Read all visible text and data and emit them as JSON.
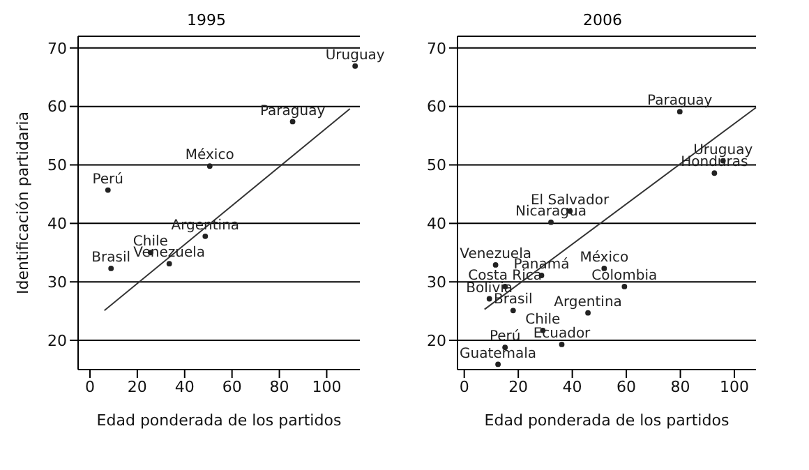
{
  "chart_data": [
    {
      "type": "scatter",
      "title": "1995",
      "xlabel": "Edad ponderada de los partidos",
      "ylabel": "Identificación partidaria",
      "xlim": [
        -5,
        114
      ],
      "ylim": [
        15,
        72
      ],
      "xticks": [
        0,
        20,
        40,
        60,
        80,
        100
      ],
      "yticks": [
        20,
        30,
        40,
        50,
        60,
        70
      ],
      "grid": "y",
      "marker": "circle",
      "series": [
        {
          "color": "#222222",
          "x": [
            112,
            85.6,
            50.6,
            7.6,
            48.7,
            25.6,
            33.5,
            8.9
          ],
          "values": [
            66.9,
            57.4,
            49.8,
            45.7,
            37.8,
            35.0,
            33.1,
            32.3
          ],
          "value_labels": [
            "Uruguay",
            "Paraguay",
            "México",
            "Perú",
            "Argentina",
            "Chile",
            "Venezuela",
            "Brasil"
          ]
        },
        {
          "type": "line",
          "marker": "none",
          "color": "#333333",
          "x": [
            6.1,
            109.8
          ],
          "values": [
            25.1,
            59.6
          ]
        }
      ]
    },
    {
      "type": "scatter",
      "title": "2006",
      "xlabel": "Edad ponderada de los partidos",
      "xlim": [
        -2.5,
        108
      ],
      "ylim": [
        15,
        72
      ],
      "xticks": [
        0,
        20,
        40,
        60,
        80,
        100
      ],
      "yticks": [
        20,
        30,
        40,
        50,
        60,
        70
      ],
      "grid": "y",
      "marker": "circle",
      "series": [
        {
          "color": "#222222",
          "x": [
            79.8,
            95.8,
            92.6,
            39.1,
            32.1,
            11.6,
            51.8,
            28.6,
            15.1,
            59.3,
            9.3,
            18.1,
            45.8,
            29.1,
            15.1,
            36.1,
            12.5
          ],
          "values": [
            59.1,
            50.7,
            48.6,
            42.1,
            40.2,
            32.9,
            32.3,
            31.1,
            29.2,
            29.2,
            27.1,
            25.1,
            24.7,
            21.7,
            18.8,
            19.3,
            15.9
          ],
          "value_labels": [
            "Paraguay",
            "Uruguay",
            "Honduras",
            "El Salvador",
            "Nicaragua",
            "Venezuela",
            "México",
            "Panamá",
            "Costa Rica",
            "Colombia",
            "Bolivia",
            "Brasil",
            "Argentina",
            "Chile",
            "Perú",
            "Ecuador",
            "Guatemala"
          ]
        },
        {
          "type": "line",
          "marker": "none",
          "color": "#333333",
          "x": [
            7.5,
            108
          ],
          "values": [
            25.3,
            59.8
          ]
        }
      ]
    }
  ]
}
